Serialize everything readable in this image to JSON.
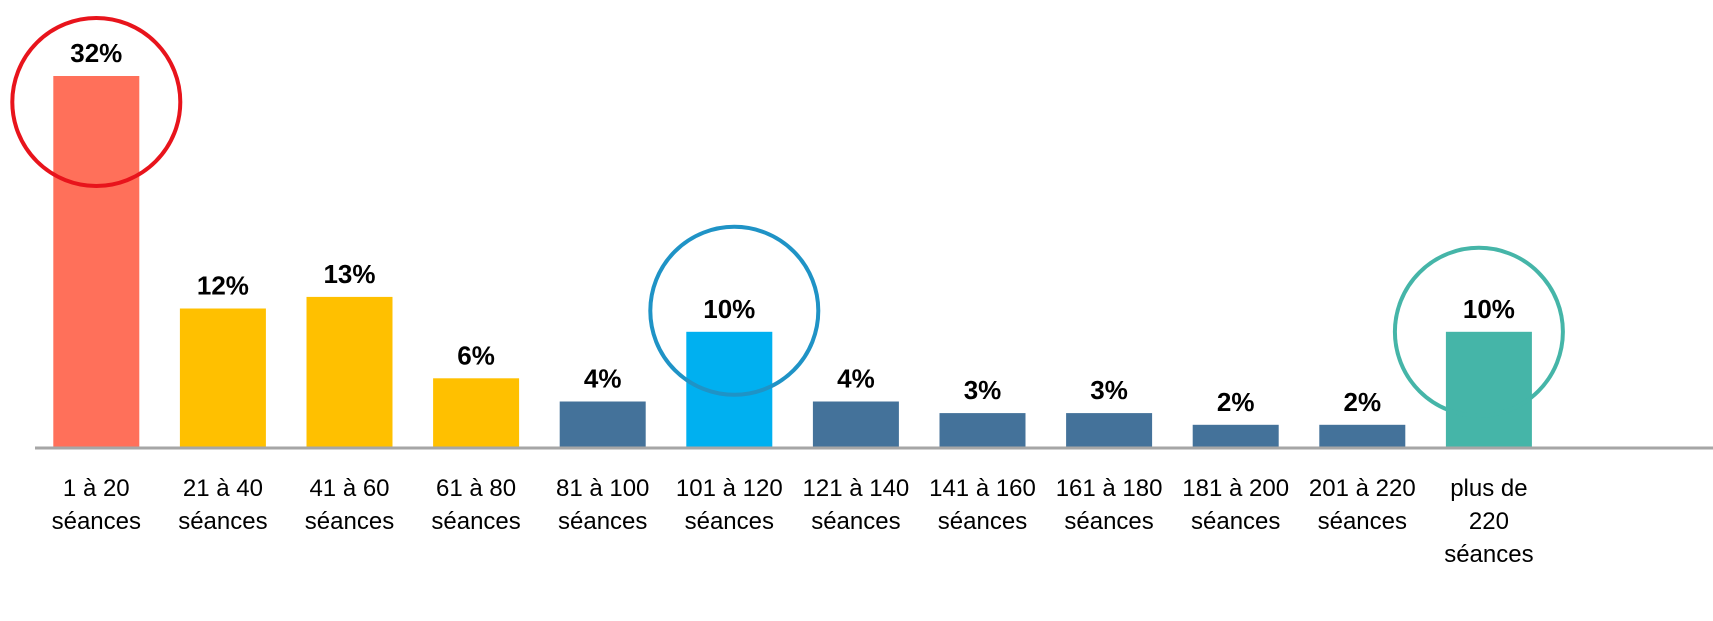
{
  "chart_data": {
    "type": "bar",
    "categories": [
      [
        "1 à 20",
        "séances"
      ],
      [
        "21 à 40",
        "séances"
      ],
      [
        "41 à 60",
        "séances"
      ],
      [
        "61 à 80",
        "séances"
      ],
      [
        "81 à 100",
        "séances"
      ],
      [
        "101 à 120",
        "séances"
      ],
      [
        "121 à 140",
        "séances"
      ],
      [
        "141 à 160",
        "séances"
      ],
      [
        "161 à 180",
        "séances"
      ],
      [
        "181 à 200",
        "séances"
      ],
      [
        "201 à 220",
        "séances"
      ],
      [
        "plus de",
        "220",
        "séances"
      ]
    ],
    "values": [
      32,
      12,
      13,
      6,
      4,
      10,
      4,
      3,
      3,
      2,
      2,
      10
    ],
    "data_labels": [
      "32%",
      "12%",
      "13%",
      "6%",
      "4%",
      "10%",
      "4%",
      "3%",
      "3%",
      "2%",
      "2%",
      "10%"
    ],
    "bar_colors": [
      "#FF705A",
      "#FFC000",
      "#FFC000",
      "#FFC000",
      "#44729A",
      "#00B0F0",
      "#44729A",
      "#44729A",
      "#44729A",
      "#44729A",
      "#44729A",
      "#45B5A8"
    ],
    "highlight_circles": [
      {
        "category_index": 0,
        "color": "#E8141C"
      },
      {
        "category_index": 5,
        "color": "#1F93C6"
      },
      {
        "category_index": 11,
        "color": "#45B5A8"
      }
    ],
    "ylim": [
      0,
      32
    ],
    "grid": false,
    "legend": "none",
    "axis_color": "#A6A6A6",
    "title": "",
    "xlabel": "",
    "ylabel": ""
  }
}
